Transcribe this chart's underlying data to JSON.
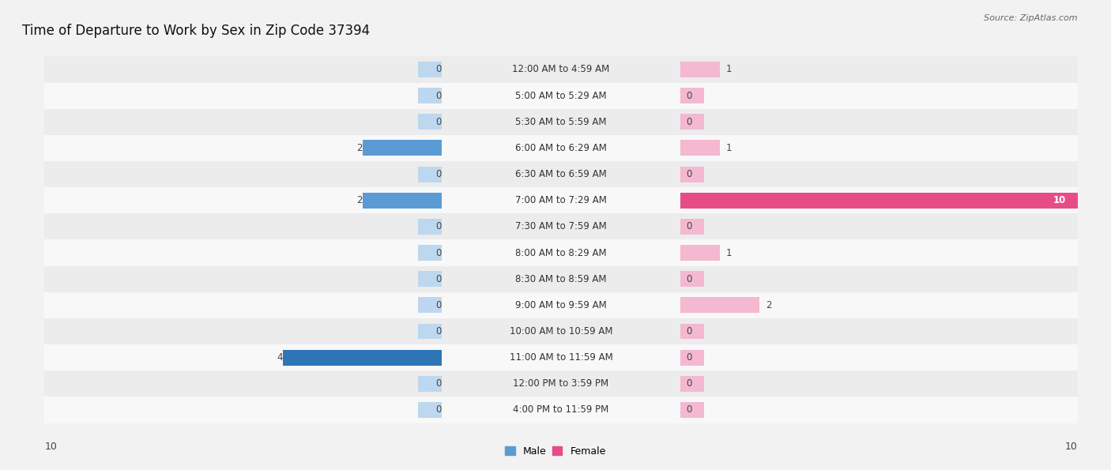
{
  "title": "Time of Departure to Work by Sex in Zip Code 37394",
  "source": "Source: ZipAtlas.com",
  "categories": [
    "12:00 AM to 4:59 AM",
    "5:00 AM to 5:29 AM",
    "5:30 AM to 5:59 AM",
    "6:00 AM to 6:29 AM",
    "6:30 AM to 6:59 AM",
    "7:00 AM to 7:29 AM",
    "7:30 AM to 7:59 AM",
    "8:00 AM to 8:29 AM",
    "8:30 AM to 8:59 AM",
    "9:00 AM to 9:59 AM",
    "10:00 AM to 10:59 AM",
    "11:00 AM to 11:59 AM",
    "12:00 PM to 3:59 PM",
    "4:00 PM to 11:59 PM"
  ],
  "male_values": [
    0,
    0,
    0,
    2,
    0,
    2,
    0,
    0,
    0,
    0,
    0,
    4,
    0,
    0
  ],
  "female_values": [
    1,
    0,
    0,
    1,
    0,
    10,
    0,
    1,
    0,
    2,
    0,
    0,
    0,
    0
  ],
  "male_color_active": "#5b9bd5",
  "male_color_light": "#bdd7ee",
  "female_color_active": "#e84c88",
  "female_color_light": "#f4b8d0",
  "male_highlight_color": "#2e75b6",
  "female_highlight_color": "#c9234a",
  "xlim": 10,
  "bar_height": 0.6,
  "bg_color": "#f2f2f2",
  "row_even_color": "#ececec",
  "row_odd_color": "#f8f8f8",
  "legend_male_label": "Male",
  "legend_female_label": "Female",
  "title_fontsize": 12,
  "category_fontsize": 8.5,
  "value_fontsize": 8.5,
  "source_fontsize": 8,
  "axis_label_fontsize": 9
}
